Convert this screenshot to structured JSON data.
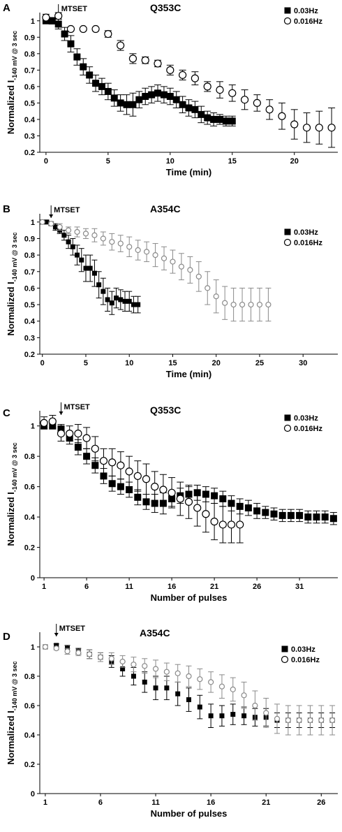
{
  "chart_data": [
    {
      "type": "scatter",
      "panel_label": "A",
      "title": "Q353C",
      "xlabel": "Time (min)",
      "ylabel_main": "Normalized I",
      "ylabel_sub": "-140 mV @ 3 sec",
      "xlim": [
        -0.5,
        23.5
      ],
      "ylim": [
        0.2,
        1.05
      ],
      "xticks": [
        0,
        5,
        10,
        15,
        20
      ],
      "yticks": [
        0.2,
        0.3,
        0.4,
        0.5,
        0.6,
        0.7,
        0.8,
        0.9,
        1
      ],
      "annotation": {
        "text": "MTSET",
        "x": 1
      },
      "series": [
        {
          "name": "0.03Hz",
          "marker": "square-filled",
          "x": [
            0,
            0.5,
            1,
            1.5,
            2,
            2.5,
            3,
            3.5,
            4,
            4.5,
            5,
            5.5,
            6,
            6.5,
            7,
            7.5,
            8,
            8.5,
            9,
            9.5,
            10,
            10.5,
            11,
            11.5,
            12,
            12.5,
            13,
            13.5,
            14,
            14.5,
            15
          ],
          "y": [
            1,
            1,
            0.98,
            0.92,
            0.86,
            0.78,
            0.72,
            0.67,
            0.62,
            0.6,
            0.57,
            0.53,
            0.5,
            0.49,
            0.49,
            0.52,
            0.54,
            0.55,
            0.56,
            0.55,
            0.54,
            0.52,
            0.49,
            0.47,
            0.46,
            0.43,
            0.41,
            0.4,
            0.4,
            0.39,
            0.39
          ],
          "err": [
            0,
            0.02,
            0.03,
            0.04,
            0.05,
            0.05,
            0.05,
            0.05,
            0.05,
            0.05,
            0.05,
            0.05,
            0.05,
            0.06,
            0.07,
            0.05,
            0.05,
            0.05,
            0.05,
            0.05,
            0.05,
            0.05,
            0.05,
            0.05,
            0.05,
            0.05,
            0.04,
            0.04,
            0.03,
            0.03,
            0.03
          ]
        },
        {
          "name": "0.016Hz",
          "marker": "circle-open",
          "x": [
            0,
            1,
            2,
            3,
            4,
            5,
            6,
            7,
            8,
            9,
            10,
            11,
            12,
            13,
            14,
            15,
            16,
            17,
            18,
            19,
            20,
            21,
            22,
            23
          ],
          "y": [
            1.02,
            1.03,
            0.95,
            0.95,
            0.95,
            0.92,
            0.85,
            0.77,
            0.76,
            0.74,
            0.7,
            0.67,
            0.65,
            0.6,
            0.58,
            0.56,
            0.52,
            0.5,
            0.46,
            0.42,
            0.37,
            0.35,
            0.35,
            0.35
          ],
          "err": [
            0.02,
            0.02,
            0.01,
            0.01,
            0.01,
            0.02,
            0.03,
            0.03,
            0.02,
            0.02,
            0.03,
            0.03,
            0.04,
            0.03,
            0.05,
            0.05,
            0.06,
            0.05,
            0.06,
            0.08,
            0.09,
            0.09,
            0.1,
            0.12
          ]
        }
      ]
    },
    {
      "type": "scatter",
      "panel_label": "B",
      "title": "A354C",
      "xlabel": "Time (min)",
      "ylabel_main": "Normalized I",
      "ylabel_sub": "-140 mV @ 3 sec",
      "xlim": [
        -0.3,
        34
      ],
      "ylim": [
        0.2,
        1.05
      ],
      "xticks": [
        0,
        5,
        10,
        15,
        20,
        25,
        30
      ],
      "yticks": [
        0.2,
        0.3,
        0.4,
        0.5,
        0.6,
        0.7,
        0.8,
        0.9,
        1
      ],
      "annotation": {
        "text": "MTSET",
        "x": 1
      },
      "series": [
        {
          "name": "0.03Hz",
          "marker": "square-filled",
          "x": [
            0,
            0.5,
            1,
            1.5,
            2,
            2.5,
            3,
            3.5,
            4,
            4.5,
            5,
            5.5,
            6,
            6.5,
            7,
            7.5,
            8,
            8.5,
            9,
            9.5,
            10,
            10.5,
            11
          ],
          "y": [
            1,
            1,
            0.99,
            0.97,
            0.95,
            0.92,
            0.88,
            0.85,
            0.8,
            0.77,
            0.72,
            0.72,
            0.69,
            0.62,
            0.58,
            0.53,
            0.51,
            0.54,
            0.53,
            0.52,
            0.52,
            0.5,
            0.5
          ],
          "err": [
            0,
            0,
            0.01,
            0.02,
            0.02,
            0.03,
            0.04,
            0.05,
            0.06,
            0.07,
            0.08,
            0.08,
            0.08,
            0.08,
            0.08,
            0.07,
            0.07,
            0.06,
            0.06,
            0.06,
            0.06,
            0.05,
            0.05
          ]
        },
        {
          "name": "0.016Hz",
          "marker": "circle-open",
          "x": [
            0,
            1,
            2,
            3,
            4,
            5,
            6,
            7,
            8,
            9,
            10,
            11,
            12,
            13,
            14,
            15,
            16,
            17,
            18,
            19,
            20,
            21,
            22,
            23,
            24,
            25,
            26
          ],
          "y": [
            1,
            0.99,
            0.97,
            0.95,
            0.94,
            0.93,
            0.92,
            0.9,
            0.88,
            0.87,
            0.85,
            0.83,
            0.82,
            0.8,
            0.78,
            0.76,
            0.73,
            0.71,
            0.67,
            0.6,
            0.55,
            0.51,
            0.5,
            0.5,
            0.5,
            0.5,
            0.5
          ],
          "err": [
            0,
            0.01,
            0.02,
            0.02,
            0.03,
            0.03,
            0.04,
            0.04,
            0.05,
            0.05,
            0.06,
            0.06,
            0.06,
            0.07,
            0.07,
            0.07,
            0.08,
            0.08,
            0.09,
            0.1,
            0.1,
            0.1,
            0.1,
            0.1,
            0.1,
            0.1,
            0.1
          ]
        }
      ]
    },
    {
      "type": "scatter",
      "panel_label": "C",
      "title": "Q353C",
      "xlabel": "Number of pulses",
      "ylabel_main": "Normalized I",
      "ylabel_sub": "-140 mV @ 3 sec",
      "xlim": [
        0.5,
        35.5
      ],
      "ylim": [
        0,
        1.1
      ],
      "xticks": [
        1,
        6,
        11,
        16,
        21,
        26,
        31
      ],
      "yticks": [
        0,
        0.2,
        0.4,
        0.6,
        0.8,
        1
      ],
      "annotation": {
        "text": "MTSET",
        "x": 3
      },
      "series": [
        {
          "name": "0.03Hz",
          "marker": "square-filled",
          "x": [
            1,
            2,
            3,
            4,
            5,
            6,
            7,
            8,
            9,
            10,
            11,
            12,
            13,
            14,
            15,
            16,
            17,
            18,
            19,
            20,
            21,
            22,
            23,
            24,
            25,
            26,
            27,
            28,
            29,
            30,
            31,
            32,
            33,
            34,
            35
          ],
          "y": [
            1,
            1,
            0.98,
            0.92,
            0.86,
            0.8,
            0.74,
            0.67,
            0.62,
            0.6,
            0.58,
            0.53,
            0.5,
            0.49,
            0.49,
            0.52,
            0.54,
            0.55,
            0.56,
            0.55,
            0.54,
            0.52,
            0.49,
            0.47,
            0.46,
            0.44,
            0.43,
            0.42,
            0.41,
            0.41,
            0.41,
            0.4,
            0.4,
            0.4,
            0.39
          ],
          "err": [
            0,
            0.02,
            0.03,
            0.04,
            0.05,
            0.05,
            0.05,
            0.05,
            0.05,
            0.05,
            0.05,
            0.05,
            0.05,
            0.06,
            0.07,
            0.05,
            0.05,
            0.05,
            0.05,
            0.05,
            0.05,
            0.05,
            0.05,
            0.05,
            0.05,
            0.05,
            0.04,
            0.04,
            0.04,
            0.04,
            0.04,
            0.04,
            0.04,
            0.04,
            0.04
          ]
        },
        {
          "name": "0.016Hz",
          "marker": "circle-open",
          "x": [
            1,
            2,
            3,
            4,
            5,
            6,
            7,
            8,
            9,
            10,
            11,
            12,
            13,
            14,
            15,
            16,
            17,
            18,
            19,
            20,
            21,
            22,
            23,
            24
          ],
          "y": [
            1.02,
            1.03,
            0.95,
            0.95,
            0.95,
            0.92,
            0.85,
            0.77,
            0.76,
            0.74,
            0.7,
            0.67,
            0.65,
            0.6,
            0.58,
            0.56,
            0.52,
            0.5,
            0.46,
            0.42,
            0.37,
            0.35,
            0.35,
            0.35
          ],
          "err": [
            0.04,
            0.04,
            0.05,
            0.05,
            0.06,
            0.07,
            0.08,
            0.08,
            0.09,
            0.09,
            0.1,
            0.1,
            0.1,
            0.1,
            0.1,
            0.1,
            0.11,
            0.11,
            0.12,
            0.12,
            0.12,
            0.12,
            0.12,
            0.12
          ]
        }
      ]
    },
    {
      "type": "scatter",
      "panel_label": "D",
      "title": "A354C",
      "xlabel": "Number of pulses",
      "ylabel_main": "Normalized I",
      "ylabel_sub": "-140 mV @ 3 sec",
      "xlim": [
        0.5,
        27.5
      ],
      "ylim": [
        0,
        1.1
      ],
      "xticks": [
        1,
        6,
        11,
        16,
        21,
        26
      ],
      "yticks": [
        0,
        0.2,
        0.4,
        0.6,
        0.8,
        1
      ],
      "annotation": {
        "text": "MTSET",
        "x": 2
      },
      "series": [
        {
          "name": "0.03Hz",
          "marker": "square-filled",
          "x": [
            1,
            2,
            3,
            4,
            5,
            6,
            7,
            8,
            9,
            10,
            11,
            12,
            13,
            14,
            15,
            16,
            17,
            18,
            19,
            20,
            21,
            22,
            23,
            24,
            25,
            26,
            27
          ],
          "y": [
            1,
            1.01,
            0.99,
            0.97,
            0.95,
            0.93,
            0.9,
            0.85,
            0.8,
            0.76,
            0.72,
            0.72,
            0.68,
            0.64,
            0.59,
            0.53,
            0.53,
            0.54,
            0.53,
            0.52,
            0.52,
            0.5,
            0.5,
            0.5,
            0.5,
            0.5,
            0.5
          ],
          "err": [
            0,
            0.01,
            0.02,
            0.02,
            0.03,
            0.03,
            0.04,
            0.05,
            0.06,
            0.07,
            0.08,
            0.08,
            0.08,
            0.08,
            0.08,
            0.08,
            0.07,
            0.07,
            0.06,
            0.06,
            0.06,
            0.05,
            0.05,
            0.05,
            0.05,
            0.05,
            0.05
          ]
        },
        {
          "name": "0.016Hz",
          "marker": "circle-open",
          "x": [
            1,
            2,
            3,
            4,
            5,
            6,
            7,
            8,
            9,
            10,
            11,
            12,
            13,
            14,
            15,
            16,
            17,
            18,
            19,
            20,
            21,
            22,
            23,
            24,
            25,
            26,
            27
          ],
          "y": [
            1,
            0.99,
            0.97,
            0.96,
            0.95,
            0.93,
            0.92,
            0.9,
            0.88,
            0.87,
            0.85,
            0.83,
            0.82,
            0.8,
            0.78,
            0.76,
            0.73,
            0.71,
            0.67,
            0.6,
            0.55,
            0.51,
            0.5,
            0.5,
            0.5,
            0.5,
            0.5
          ],
          "err": [
            0,
            0.01,
            0.02,
            0.02,
            0.03,
            0.03,
            0.04,
            0.04,
            0.05,
            0.05,
            0.06,
            0.06,
            0.06,
            0.07,
            0.07,
            0.07,
            0.08,
            0.08,
            0.09,
            0.1,
            0.1,
            0.1,
            0.1,
            0.1,
            0.1,
            0.1,
            0.1
          ]
        }
      ]
    }
  ],
  "colors": {
    "filled_marker": "#000000",
    "open_marker_a_c": "#000000",
    "open_marker_b_d": "#8a8a8a",
    "axis": "#000000"
  }
}
